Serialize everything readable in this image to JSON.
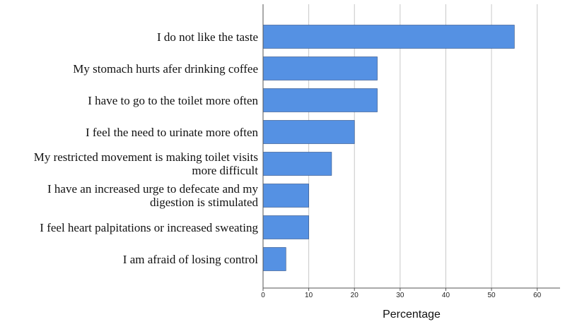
{
  "chart_data": {
    "type": "bar",
    "orientation": "horizontal",
    "title": "",
    "xlabel": "Percentage",
    "ylabel": "",
    "xlim": [
      0,
      65
    ],
    "x_ticks": [
      0,
      10,
      20,
      30,
      40,
      50,
      60
    ],
    "grid": "vertical lines",
    "bar_color": "#5591e3",
    "categories": [
      "I do not like the taste",
      "My stomach hurts afer drinking coffee",
      "I have to go to the toilet more often",
      "I feel the need to urinate more often",
      "My restricted movement is making toilet visits\nmore difficult",
      "I have an increased urge to defecate and my\ndigestion is stimulated",
      "I feel heart palpitations or increased sweating",
      "I am afraid of losing control"
    ],
    "values": [
      55,
      25,
      25,
      20,
      15,
      10,
      10,
      5
    ]
  }
}
